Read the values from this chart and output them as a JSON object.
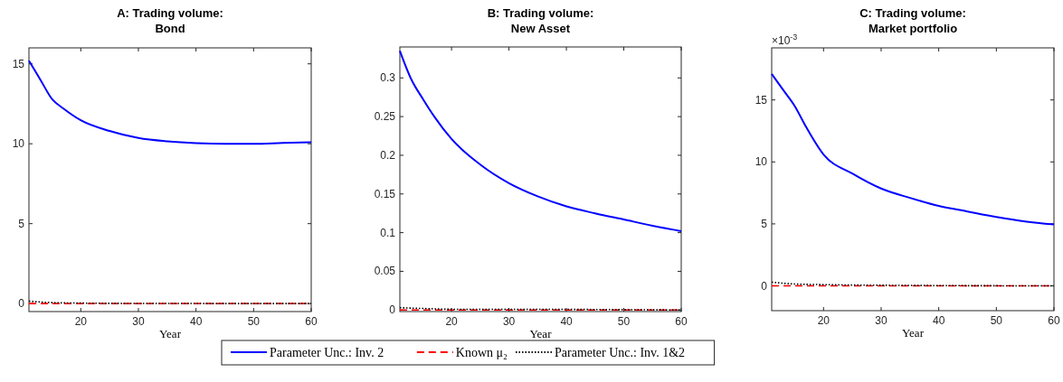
{
  "chart_data": [
    {
      "type": "line",
      "title": "A: Trading volume:\nBond",
      "xlabel": "Year",
      "xlim": [
        11,
        60
      ],
      "xticks": [
        20,
        30,
        40,
        50,
        60
      ],
      "ylim": [
        -0.5,
        16
      ],
      "yticks": [
        0,
        5,
        10,
        15
      ],
      "legend": "bottom",
      "grid": false,
      "series": [
        {
          "name": "Parameter Unc.: Inv. 2",
          "color": "#0000ff",
          "line_style": "solid",
          "x": [
            11,
            12,
            13,
            15,
            17,
            20,
            25,
            30,
            35,
            40,
            45,
            50,
            55,
            60
          ],
          "values": [
            15.2,
            14.6,
            14.0,
            12.8,
            12.2,
            11.47,
            10.8,
            10.36,
            10.15,
            10.04,
            10.0,
            10.0,
            10.05,
            10.1
          ]
        },
        {
          "name": "Known μ₂",
          "color": "#ff0000",
          "line_style": "dashed",
          "x": [
            11,
            20,
            30,
            40,
            50,
            60
          ],
          "values": [
            0,
            0,
            0,
            0,
            0,
            0
          ]
        },
        {
          "name": "Parameter Unc.: Inv. 1&2",
          "color": "#000000",
          "line_style": "dotted",
          "x": [
            11,
            15,
            20,
            30,
            60
          ],
          "values": [
            0.15,
            0.06,
            0.03,
            0.01,
            0
          ]
        }
      ]
    },
    {
      "type": "line",
      "title": "B: Trading volume:\nNew Asset",
      "xlabel": "Year",
      "xlim": [
        11,
        60
      ],
      "xticks": [
        20,
        30,
        40,
        50,
        60
      ],
      "ylim": [
        -0.002,
        0.34
      ],
      "yticks": [
        0,
        0.05,
        0.1,
        0.15,
        0.2,
        0.25,
        0.3
      ],
      "grid": false,
      "series": [
        {
          "color": "#0000ff",
          "line_style": "solid",
          "x": [
            11,
            13,
            15,
            17,
            20,
            25,
            30,
            35,
            40,
            45,
            50,
            55,
            60
          ],
          "values": [
            0.335,
            0.298,
            0.273,
            0.25,
            0.221,
            0.188,
            0.164,
            0.147,
            0.134,
            0.125,
            0.117,
            0.109,
            0.102
          ]
        },
        {
          "color": "#ff0000",
          "line_style": "dashed",
          "x": [
            11,
            20,
            30,
            40,
            50,
            60
          ],
          "values": [
            0,
            0,
            0,
            0,
            0,
            0
          ]
        },
        {
          "color": "#000000",
          "line_style": "dotted",
          "x": [
            11,
            15,
            20,
            30,
            60
          ],
          "values": [
            0.003,
            0.002,
            0.001,
            0.001,
            0
          ]
        }
      ]
    },
    {
      "type": "line",
      "title": "C: Trading volume:\nMarket portfolio",
      "xlabel": "Year",
      "xlim": [
        11,
        60
      ],
      "xticks": [
        20,
        30,
        40,
        50,
        60
      ],
      "ylim": [
        -2,
        19.2
      ],
      "yticks": [
        0,
        5,
        10,
        15
      ],
      "annotations": [
        "×10$^{-3}$"
      ],
      "grid": false,
      "series": [
        {
          "color": "#0000ff",
          "line_style": "solid",
          "x": [
            11,
            13,
            15,
            17,
            20,
            25,
            30,
            35,
            40,
            45,
            50,
            55,
            60
          ],
          "values": [
            17.1,
            15.8,
            14.5,
            12.8,
            10.6,
            9.06,
            7.85,
            7.1,
            6.45,
            6.0,
            5.56,
            5.2,
            4.95
          ]
        },
        {
          "color": "#ff0000",
          "line_style": "dashed",
          "x": [
            11,
            20,
            30,
            40,
            50,
            60
          ],
          "values": [
            0,
            0,
            0,
            0,
            0,
            0
          ]
        },
        {
          "color": "#000000",
          "line_style": "dotted",
          "x": [
            11,
            15,
            20,
            30,
            60
          ],
          "values": [
            0.3,
            0.15,
            0.1,
            0.05,
            0
          ]
        }
      ]
    }
  ]
}
